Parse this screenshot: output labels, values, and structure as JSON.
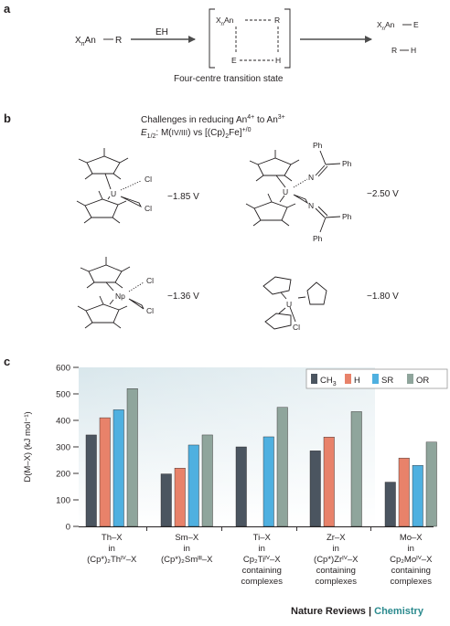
{
  "colors": {
    "text": "#231f20",
    "arrow": "#4d4d4d",
    "panel_bg_top": "#d9e7ec",
    "panel_bg_bottom": "#ffffff",
    "series_CH3": "#4b5560",
    "series_H": "#e8826a",
    "series_SR": "#4fb0e0",
    "series_OR": "#8fa59c",
    "footer_accent": "#2b8a8e"
  },
  "panel_a": {
    "label": "a",
    "reactant_prefix": "X",
    "reactant_sub": "n",
    "reactant_mid": "An",
    "reactant_r": "R",
    "reagent": "EH",
    "ts_xnan_prefix": "X",
    "ts_xnan_sub": "n",
    "ts_xnan_mid": "An",
    "ts_r": "R",
    "ts_e": "E",
    "ts_h": "H",
    "ts_caption": "Four-centre transition state",
    "product1_prefix": "X",
    "product1_sub": "n",
    "product1_mid": "An",
    "product1_e": "E",
    "product2_r": "R",
    "product2_h": "H"
  },
  "panel_b": {
    "label": "b",
    "heading_line1_a": "Challenges in reducing An",
    "heading_line1_sup1": "4+",
    "heading_line1_b": " to An",
    "heading_line1_sup2": "3+",
    "heading_line2_e": "E",
    "heading_line2_sub": "1/2",
    "heading_line2_a": ": M(",
    "heading_line2_sc": "IV/III",
    "heading_line2_b": ") vs [(Cp)",
    "heading_line2_sub2": "2",
    "heading_line2_c": "Fe]",
    "heading_line2_sup": "+/0",
    "complexes": [
      {
        "metal": "U",
        "ligand1": "Cl",
        "ligand2": "Cl",
        "potential": "−1.85 V"
      },
      {
        "metal": "U",
        "ligand1": "N",
        "ligand2": "N",
        "ph1": "Ph",
        "ph2": "Ph",
        "ph3": "Ph",
        "ph4": "Ph",
        "potential": "−2.50 V"
      },
      {
        "metal": "Np",
        "ligand1": "Cl",
        "ligand2": "Cl",
        "potential": "−1.36 V"
      },
      {
        "metal": "U",
        "ligand1": "Cl",
        "potential": "−1.80 V"
      }
    ]
  },
  "panel_c": {
    "label": "c",
    "legend": [
      "CH3",
      "H",
      "SR",
      "OR"
    ],
    "legend_display": {
      "CH3_main": "CH",
      "CH3_sub": "3"
    },
    "ylabel": "D(M–X) (kJ mol⁻¹)"
  },
  "chart_data": {
    "type": "bar",
    "ylabel": "D(M–X) (kJ mol⁻¹)",
    "ylim": [
      0,
      600
    ],
    "yticks": [
      0,
      100,
      200,
      300,
      400,
      500,
      600
    ],
    "legend_placement": "top-right",
    "categories": [
      [
        "Th–X",
        "in",
        "(Cp*)₂Thᴵⱽ–X"
      ],
      [
        "Sm–X",
        "in",
        "(Cp*)₂Smᴵᴵᴵ–X"
      ],
      [
        "Ti–X",
        "in",
        "Cp₂Tiᴵⱽ–X",
        "containing",
        "complexes"
      ],
      [
        "Zr–X",
        "in",
        "(Cp*)Zrᴵⱽ–X",
        "containing",
        "complexes"
      ],
      [
        "Mo–X",
        "in",
        "Cp₂Moᴵⱽ–X",
        "containing",
        "complexes"
      ]
    ],
    "series": [
      {
        "name": "CH3",
        "values": [
          345,
          198,
          300,
          285,
          167
        ]
      },
      {
        "name": "H",
        "values": [
          410,
          220,
          null,
          337,
          258
        ]
      },
      {
        "name": "SR",
        "values": [
          440,
          307,
          338,
          null,
          230
        ]
      },
      {
        "name": "OR",
        "values": [
          520,
          345,
          449,
          433,
          318
        ]
      }
    ]
  },
  "footer": {
    "journal": "Nature Reviews",
    "separator": " | ",
    "section": "Chemistry"
  }
}
